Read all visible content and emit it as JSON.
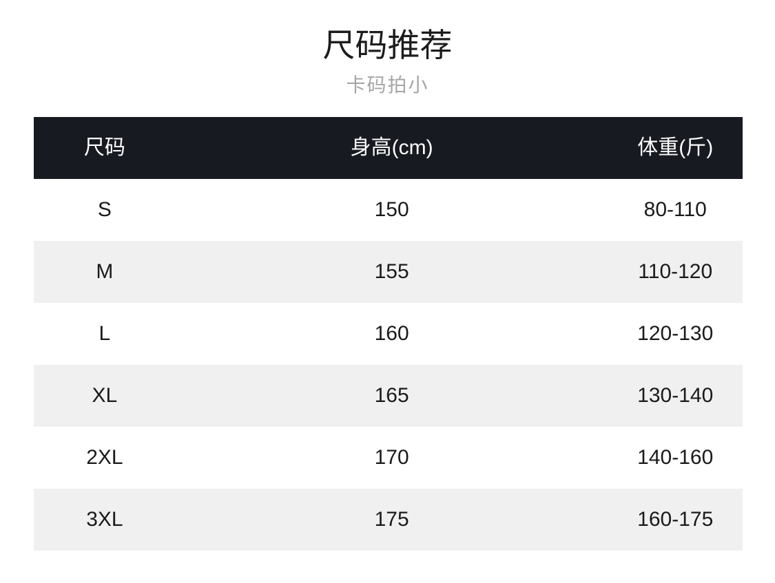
{
  "title": "尺码推荐",
  "subtitle": "卡码拍小",
  "chart_data": {
    "type": "table",
    "title": "尺码推荐",
    "subtitle": "卡码拍小",
    "columns": [
      "尺码",
      "身高(cm)",
      "体重(斤)"
    ],
    "rows": [
      [
        "S",
        "150",
        "80-110"
      ],
      [
        "M",
        "155",
        "110-120"
      ],
      [
        "L",
        "160",
        "120-130"
      ],
      [
        "XL",
        "165",
        "130-140"
      ],
      [
        "2XL",
        "170",
        "140-160"
      ],
      [
        "3XL",
        "175",
        "160-175"
      ]
    ]
  },
  "colors": {
    "header_bg": "#181a21",
    "header_text": "#ffffff",
    "row_alt_bg": "#f0f0f0",
    "row_bg": "#ffffff",
    "text": "#1a1a1a",
    "subtitle_text": "#a6a6a6"
  }
}
